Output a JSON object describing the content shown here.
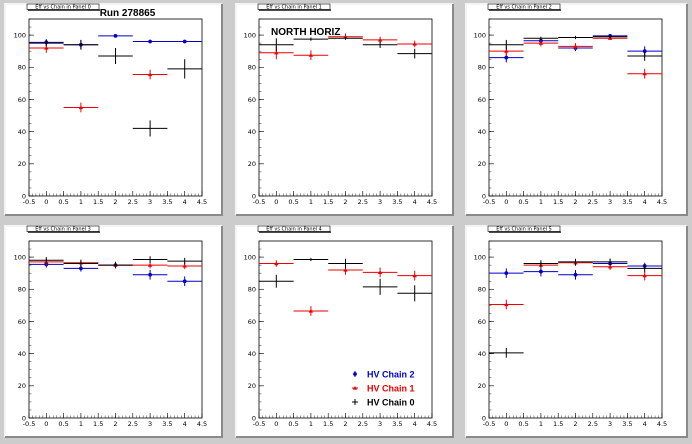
{
  "colors": {
    "blue": "#0000cc",
    "red": "#ee0000",
    "black": "#000000"
  },
  "legend": {
    "panel_index": 4,
    "entries": [
      {
        "name": "HV Chain 2",
        "color": "#0000cc",
        "marker": "circle"
      },
      {
        "name": "HV Chain 1",
        "color": "#ee0000",
        "marker": "triangle"
      },
      {
        "name": "HV Chain 0",
        "color": "#000000",
        "marker": "cross"
      }
    ]
  },
  "chart_data": [
    {
      "type": "scatter",
      "pad_title": "Eff vs Chain in Panel 0",
      "title": "Run 278865",
      "annotation": "",
      "xlim": [
        -0.5,
        4.5
      ],
      "ylim": [
        0,
        110
      ],
      "xticks": [
        "-0.5",
        "0",
        "0.5",
        "1",
        "1.5",
        "2",
        "2.5",
        "3",
        "3.5",
        "4",
        "4.5"
      ],
      "yticks": [
        "0",
        "20",
        "40",
        "60",
        "80",
        "100"
      ],
      "series": [
        {
          "color": "blue",
          "points": [
            [
              0,
              95.5,
              2
            ],
            [
              1,
              94,
              3
            ],
            [
              2,
              99.5,
              1
            ],
            [
              3,
              96,
              1
            ],
            [
              4,
              96,
              1
            ]
          ],
          "xerr": 0.5
        },
        {
          "color": "red",
          "points": [
            [
              0,
              92,
              3
            ],
            [
              1,
              55,
              3
            ],
            [
              3,
              75.5,
              3
            ]
          ],
          "xerr": 0.5
        },
        {
          "color": "black",
          "points": [
            [
              0,
              95,
              2
            ],
            [
              1,
              94,
              3
            ],
            [
              2,
              87,
              5
            ],
            [
              3,
              42,
              5
            ],
            [
              4,
              79,
              6
            ]
          ],
          "xerr": 0.5
        }
      ]
    },
    {
      "type": "scatter",
      "pad_title": "Eff vs Chain in Panel 1",
      "title": "",
      "annotation": "NORTH HORIZ",
      "xlim": [
        -0.5,
        4.5
      ],
      "ylim": [
        0,
        110
      ],
      "xticks": [
        "-0.5",
        "0",
        "0.5",
        "1",
        "1.5",
        "2",
        "2.5",
        "3",
        "3.5",
        "4",
        "4.5"
      ],
      "yticks": [
        "0",
        "20",
        "40",
        "60",
        "80",
        "100"
      ],
      "series": [
        {
          "color": "red",
          "points": [
            [
              0,
              89,
              4
            ],
            [
              1,
              87.5,
              3
            ],
            [
              2,
              99,
              2
            ],
            [
              3,
              97,
              2
            ],
            [
              4,
              94.5,
              2
            ]
          ],
          "xerr": 0.5
        },
        {
          "color": "black",
          "points": [
            [
              0,
              94,
              4
            ],
            [
              1,
              97.5,
              1
            ],
            [
              2,
              98,
              1
            ],
            [
              3,
              94,
              2
            ],
            [
              4,
              88.5,
              3
            ]
          ],
          "xerr": 0.5
        }
      ]
    },
    {
      "type": "scatter",
      "pad_title": "Eff vs Chain in Panel 2",
      "title": "",
      "annotation": "",
      "xlim": [
        -0.5,
        4.5
      ],
      "ylim": [
        0,
        110
      ],
      "xticks": [
        "-0.5",
        "0",
        "0.5",
        "1",
        "1.5",
        "2",
        "2.5",
        "3",
        "3.5",
        "4",
        "4.5"
      ],
      "yticks": [
        "0",
        "20",
        "40",
        "60",
        "80",
        "100"
      ],
      "series": [
        {
          "color": "blue",
          "points": [
            [
              0,
              86,
              3
            ],
            [
              1,
              96.5,
              2
            ],
            [
              2,
              92,
              2
            ],
            [
              3,
              99.5,
              1
            ],
            [
              4,
              90,
              3
            ]
          ],
          "xerr": 0.5
        },
        {
          "color": "red",
          "points": [
            [
              0,
              90,
              3
            ],
            [
              1,
              95,
              2
            ],
            [
              2,
              93,
              2
            ],
            [
              3,
              98,
              1
            ],
            [
              4,
              76,
              3
            ]
          ],
          "xerr": 0.5
        },
        {
          "color": "black",
          "points": [
            [
              0,
              94,
              3
            ],
            [
              1,
              98,
              1
            ],
            [
              2,
              98.5,
              1
            ],
            [
              3,
              99,
              1
            ],
            [
              4,
              87,
              3
            ]
          ],
          "xerr": 0.5
        }
      ]
    },
    {
      "type": "scatter",
      "pad_title": "Eff vs Chain in Panel 3",
      "title": "",
      "annotation": "",
      "xlim": [
        -0.5,
        4.5
      ],
      "ylim": [
        0,
        110
      ],
      "xticks": [
        "-0.5",
        "0",
        "0.5",
        "1",
        "1.5",
        "2",
        "2.5",
        "3",
        "3.5",
        "4",
        "4.5"
      ],
      "yticks": [
        "0",
        "20",
        "40",
        "60",
        "80",
        "100"
      ],
      "series": [
        {
          "color": "blue",
          "points": [
            [
              0,
              95.5,
              2
            ],
            [
              1,
              93,
              2
            ],
            [
              2,
              95,
              2
            ],
            [
              3,
              89,
              3
            ],
            [
              4,
              85,
              3
            ]
          ],
          "xerr": 0.5
        },
        {
          "color": "red",
          "points": [
            [
              0,
              97,
              2
            ],
            [
              1,
              96.5,
              2
            ],
            [
              2,
              95,
              2
            ],
            [
              3,
              95,
              2
            ],
            [
              4,
              94.5,
              2
            ]
          ],
          "xerr": 0.5
        },
        {
          "color": "black",
          "points": [
            [
              0,
              98,
              2
            ],
            [
              1,
              96,
              2
            ],
            [
              2,
              95,
              2
            ],
            [
              3,
              98.5,
              2
            ],
            [
              4,
              97.5,
              2
            ]
          ],
          "xerr": 0.5
        }
      ]
    },
    {
      "type": "scatter",
      "pad_title": "Eff vs Chain in Panel 4",
      "title": "",
      "annotation": "",
      "xlim": [
        -0.5,
        4.5
      ],
      "ylim": [
        0,
        110
      ],
      "xticks": [
        "-0.5",
        "0",
        "0.5",
        "1",
        "1.5",
        "2",
        "2.5",
        "3",
        "3.5",
        "4",
        "4.5"
      ],
      "yticks": [
        "0",
        "20",
        "40",
        "60",
        "80",
        "100"
      ],
      "series": [
        {
          "color": "red",
          "points": [
            [
              0,
              96,
              2
            ],
            [
              1,
              66.5,
              3
            ],
            [
              2,
              92,
              3
            ],
            [
              3,
              90.5,
              3
            ],
            [
              4,
              88.5,
              3
            ]
          ],
          "xerr": 0.5
        },
        {
          "color": "black",
          "points": [
            [
              0,
              85,
              4
            ],
            [
              1,
              98.5,
              1
            ],
            [
              2,
              96,
              3
            ],
            [
              3,
              81.5,
              5
            ],
            [
              4,
              77.5,
              5
            ]
          ],
          "xerr": 0.5
        }
      ]
    },
    {
      "type": "scatter",
      "pad_title": "Eff vs Chain in Panel 5",
      "title": "",
      "annotation": "",
      "xlim": [
        -0.5,
        4.5
      ],
      "ylim": [
        0,
        110
      ],
      "xticks": [
        "-0.5",
        "0",
        "0.5",
        "1",
        "1.5",
        "2",
        "2.5",
        "3",
        "3.5",
        "4",
        "4.5"
      ],
      "yticks": [
        "0",
        "20",
        "40",
        "60",
        "80",
        "100"
      ],
      "series": [
        {
          "color": "blue",
          "points": [
            [
              0,
              90,
              3
            ],
            [
              1,
              91,
              3
            ],
            [
              2,
              89,
              3
            ],
            [
              3,
              96,
              3
            ],
            [
              4,
              94.5,
              2
            ]
          ],
          "xerr": 0.5
        },
        {
          "color": "red",
          "points": [
            [
              0,
              70.5,
              3
            ],
            [
              1,
              95,
              2
            ],
            [
              2,
              96.5,
              2
            ],
            [
              3,
              94,
              2
            ],
            [
              4,
              88.5,
              3
            ]
          ],
          "xerr": 0.5
        },
        {
          "color": "black",
          "points": [
            [
              0,
              40.5,
              3
            ],
            [
              1,
              96,
              2
            ],
            [
              2,
              97,
              2
            ],
            [
              3,
              97,
              2
            ],
            [
              4,
              93,
              2
            ]
          ],
          "xerr": 0.5
        }
      ]
    }
  ]
}
